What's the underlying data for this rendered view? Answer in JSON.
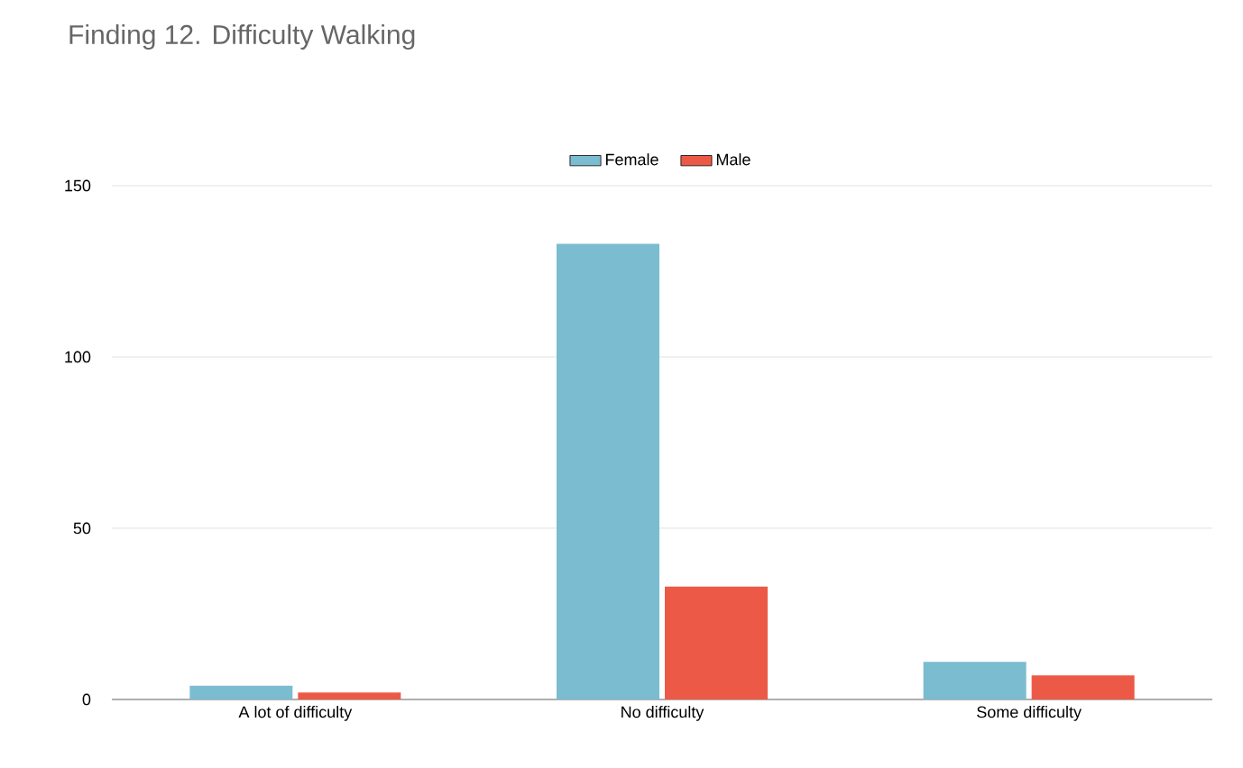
{
  "chart_data": {
    "type": "bar",
    "title": "Finding 12. Difficulty Walking",
    "categories": [
      "A lot of difficulty",
      "No difficulty",
      "Some difficulty"
    ],
    "series": [
      {
        "name": "Female",
        "color": "#7bbcd0",
        "values": [
          4,
          133,
          11
        ]
      },
      {
        "name": "Male",
        "color": "#ec5a47",
        "values": [
          2,
          33,
          7
        ]
      }
    ],
    "ylim": [
      0,
      150
    ],
    "yticks": [
      0,
      50,
      100,
      150
    ],
    "grid": "y",
    "legend": "top"
  }
}
